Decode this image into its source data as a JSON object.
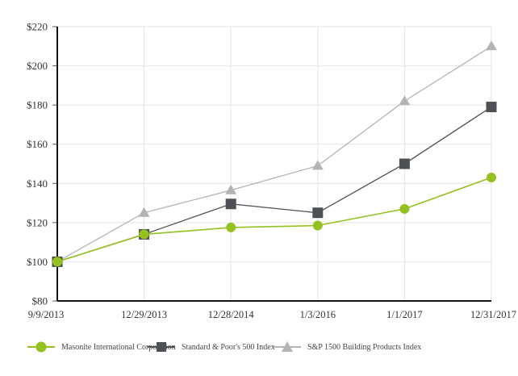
{
  "chart_data": {
    "type": "line",
    "title": "",
    "xlabel": "",
    "ylabel": "",
    "categories": [
      "9/9/2013",
      "12/29/2013",
      "12/28/2014",
      "1/3/2016",
      "1/1/2017",
      "12/31/2017"
    ],
    "y_ticks": [
      "$80",
      "$100",
      "$120",
      "$140",
      "$160",
      "$180",
      "$200",
      "$220"
    ],
    "y_tick_values": [
      80,
      100,
      120,
      140,
      160,
      180,
      200,
      220
    ],
    "ylim": [
      80,
      220
    ],
    "grid": true,
    "legend_position": "bottom",
    "series": [
      {
        "name": "Masonite International Corporation",
        "marker": "circle",
        "color": "#94c11f",
        "values": [
          100,
          114,
          117.5,
          118.5,
          127,
          143
        ]
      },
      {
        "name": "Standard & Poor's 500 Index",
        "marker": "square",
        "color": "#4d5055",
        "values": [
          100,
          114,
          129.5,
          125,
          150,
          179
        ]
      },
      {
        "name": "S&P 1500 Building Products Index",
        "marker": "triangle",
        "color": "#b4b4b4",
        "values": [
          100,
          125,
          136.5,
          149,
          182,
          210
        ]
      }
    ]
  }
}
